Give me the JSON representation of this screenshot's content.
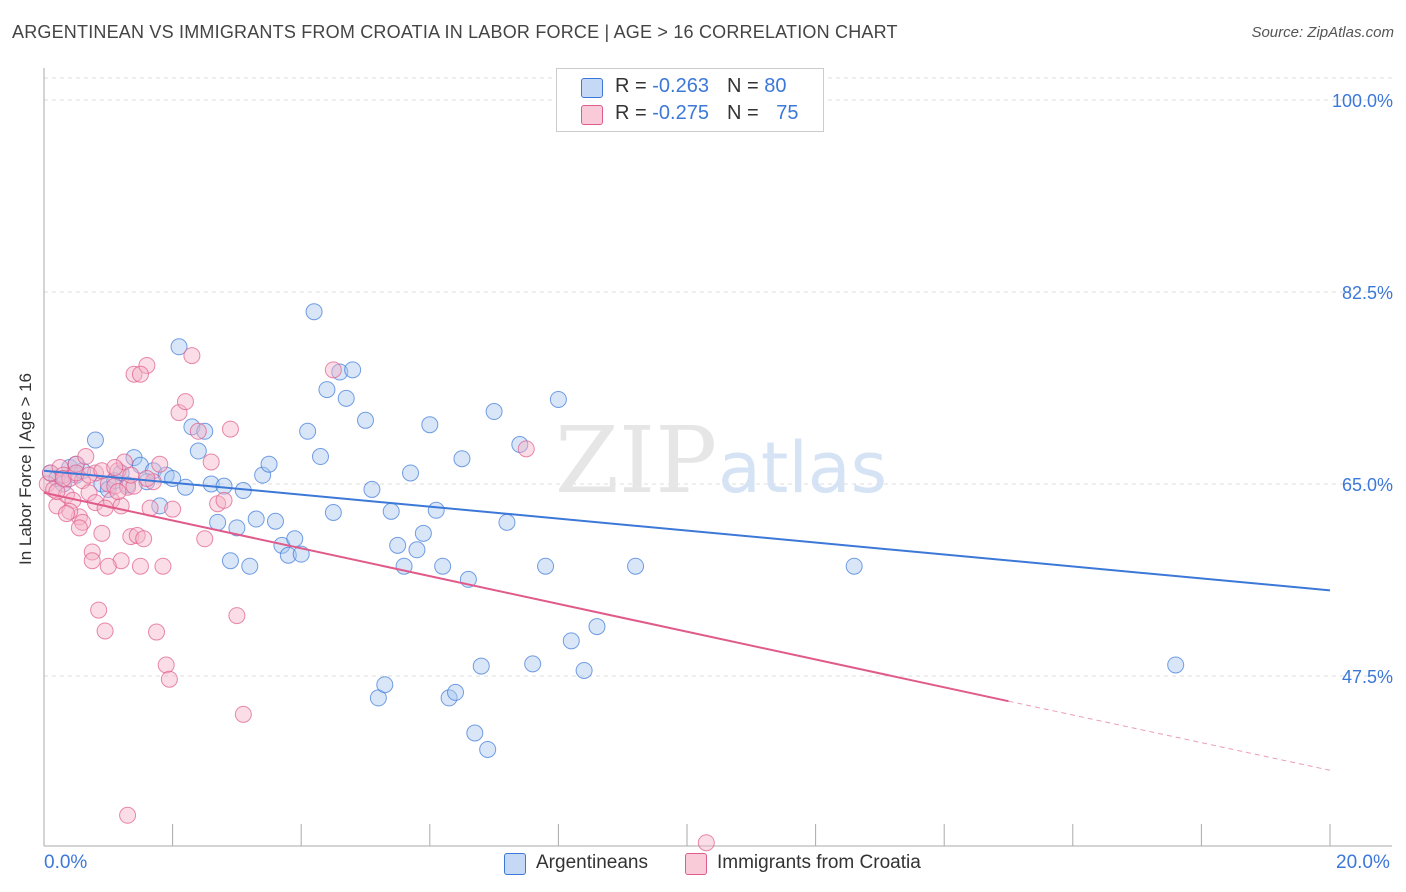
{
  "title": "ARGENTINEAN VS IMMIGRANTS FROM CROATIA IN LABOR FORCE | AGE > 16 CORRELATION CHART",
  "source": "Source: ZipAtlas.com",
  "legend": {
    "row1": {
      "r_label": "R = ",
      "r_value": "-0.263",
      "n_label": "N = ",
      "n_value": "80"
    },
    "row2": {
      "r_label": "R = ",
      "r_value": "-0.275",
      "n_label": "N = ",
      "n_value": "75"
    }
  },
  "bottom_legend": {
    "series1": "Argentineans",
    "series2": "Immigrants from Croatia"
  },
  "axis": {
    "ylabel": "In Labor Force | Age > 16",
    "x_min_label": "0.0%",
    "x_max_label": "20.0%"
  },
  "watermark": {
    "zip": "ZIP",
    "atlas": "atlas"
  },
  "colors": {
    "blue": "#3c78d8",
    "blue_fill": "#a8c8f0",
    "pink": "#e05a8a",
    "pink_fill": "#f4b4c8"
  },
  "chart_data": {
    "type": "scatter",
    "xlim": [
      0,
      20
    ],
    "ylim": [
      32,
      102
    ],
    "yticks": [
      47.5,
      65.0,
      82.5,
      100.0
    ],
    "ytick_labels": [
      "47.5%",
      "65.0%",
      "82.5%",
      "100.0%"
    ],
    "xlabel": "",
    "ylabel": "In Labor Force | Age > 16",
    "grid": true,
    "series": [
      {
        "name": "Argentineans",
        "color": "#3c78d8",
        "x": [
          0.1,
          0.2,
          0.3,
          0.4,
          0.5,
          0.6,
          0.8,
          0.9,
          1.0,
          1.1,
          1.2,
          1.3,
          1.4,
          1.5,
          1.7,
          1.8,
          1.9,
          2.0,
          2.1,
          2.2,
          2.3,
          2.4,
          2.5,
          2.6,
          2.7,
          2.8,
          2.9,
          3.0,
          3.1,
          3.2,
          3.3,
          3.4,
          3.5,
          3.6,
          3.7,
          3.8,
          3.9,
          4.0,
          4.1,
          4.2,
          4.3,
          4.4,
          4.5,
          4.6,
          4.7,
          4.8,
          5.0,
          5.1,
          5.2,
          5.3,
          5.4,
          5.5,
          5.6,
          5.7,
          5.8,
          5.9,
          6.0,
          6.1,
          6.2,
          6.3,
          6.4,
          6.5,
          6.6,
          6.7,
          6.8,
          6.9,
          7.0,
          7.2,
          7.4,
          7.6,
          7.8,
          8.0,
          8.2,
          8.4,
          8.6,
          9.2,
          12.6,
          17.6,
          0.5,
          1.6
        ],
        "y": [
          66,
          65.5,
          65,
          66.5,
          65.8,
          66.2,
          69,
          65,
          64.5,
          65.3,
          66,
          64.9,
          67.4,
          66.7,
          66.2,
          63,
          65.8,
          65.5,
          77.5,
          64.7,
          70.2,
          68,
          69.8,
          65,
          61.5,
          64.8,
          58,
          61,
          64.4,
          57.5,
          61.8,
          65.8,
          66.8,
          61.6,
          59.4,
          58.5,
          60,
          58.6,
          69.8,
          80.7,
          67.5,
          73.6,
          62.4,
          75.2,
          72.8,
          75.4,
          70.8,
          64.5,
          45.5,
          46.7,
          62.5,
          59.4,
          57.5,
          66,
          59,
          60.5,
          70.4,
          62.6,
          57.5,
          45.5,
          46,
          67.3,
          56.3,
          42.3,
          48.4,
          40.8,
          71.6,
          61.5,
          68.6,
          48.6,
          57.5,
          72.7,
          50.7,
          48,
          52,
          57.5,
          57.5,
          48.5,
          66.8,
          65.2
        ],
        "trend": {
          "x0": 0,
          "y0": 66.2,
          "x1": 20,
          "y1": 55.3
        }
      },
      {
        "name": "Immigrants from Croatia",
        "color": "#e05a8a",
        "x": [
          0.05,
          0.1,
          0.15,
          0.2,
          0.25,
          0.3,
          0.35,
          0.4,
          0.45,
          0.5,
          0.55,
          0.6,
          0.65,
          0.7,
          0.75,
          0.8,
          0.85,
          0.9,
          0.95,
          1.0,
          1.05,
          1.1,
          1.15,
          1.2,
          1.25,
          1.3,
          1.35,
          1.4,
          1.45,
          1.5,
          1.55,
          1.6,
          1.65,
          1.7,
          1.75,
          1.8,
          1.85,
          1.9,
          1.95,
          2.0,
          2.1,
          2.2,
          2.3,
          2.4,
          2.5,
          2.6,
          2.7,
          2.8,
          2.9,
          3.0,
          3.1,
          4.5,
          7.5,
          10.3,
          0.2,
          0.3,
          0.4,
          0.5,
          0.6,
          0.7,
          0.8,
          0.9,
          1.0,
          1.1,
          1.2,
          1.3,
          1.4,
          1.5,
          1.6,
          0.35,
          0.55,
          0.75,
          0.95,
          1.15,
          1.35
        ],
        "y": [
          65,
          66,
          64.5,
          63,
          66.5,
          65.8,
          64,
          65.5,
          63.5,
          66.8,
          62,
          65.3,
          67.5,
          64.2,
          58.8,
          66,
          53.5,
          60.5,
          51.6,
          65,
          63.5,
          64.8,
          66.2,
          58,
          67,
          64.7,
          60.2,
          75,
          60.3,
          57.5,
          60,
          75.8,
          62.8,
          65.2,
          51.5,
          66.8,
          57.5,
          48.5,
          47.2,
          62.7,
          71.5,
          72.5,
          76.7,
          69.8,
          60,
          67,
          63.2,
          63.5,
          70,
          53,
          44,
          75.4,
          68.2,
          32.3,
          64.3,
          65.5,
          62.5,
          66,
          61.5,
          65.8,
          63.3,
          66.2,
          57.5,
          66.5,
          63,
          34.8,
          64.8,
          75,
          65.5,
          62.3,
          61,
          58,
          62.8,
          64.3,
          65.8
        ],
        "trend": {
          "x0": 0,
          "y0": 64.2,
          "x1": 15,
          "y1": 45.2,
          "x2": 20,
          "y2": 38.9
        }
      }
    ]
  }
}
